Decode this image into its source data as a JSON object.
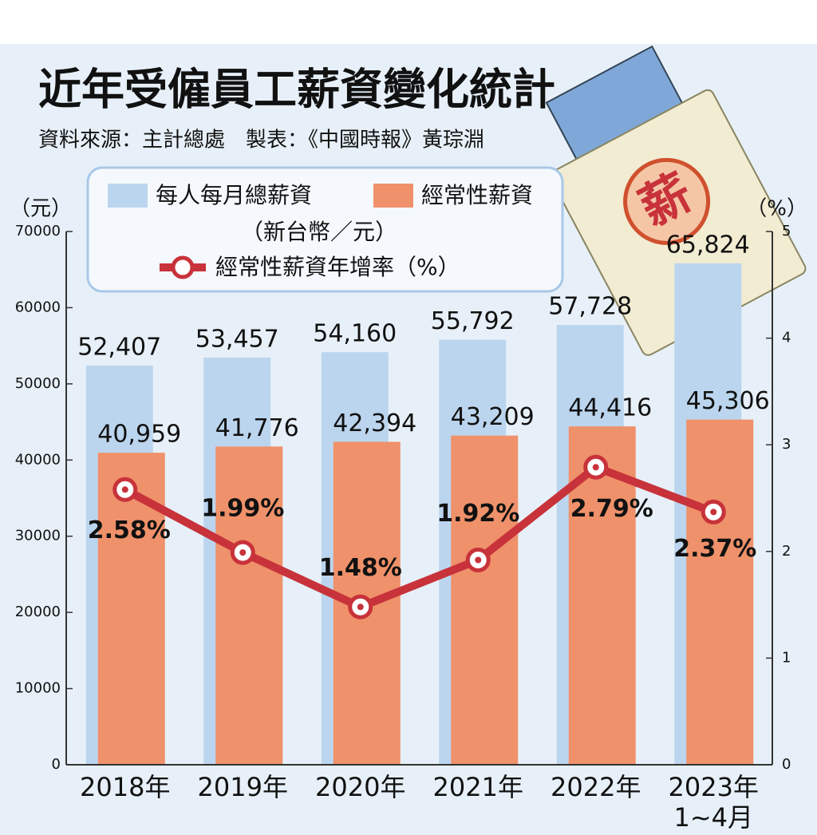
{
  "chart_data": {
    "type": "bar",
    "title": "近年受僱員工薪資變化統計",
    "subtitle": "資料來源：主計總處　製表：《中國時報》黃琮淵",
    "y_axis_label": "（元）",
    "y2_axis_label": "（%）",
    "legend_note": "（新台幣／元）",
    "illustration_text": "薪",
    "categories": [
      "2018年",
      "2019年",
      "2020年",
      "2021年",
      "2022年",
      "2023年\n1~4月"
    ],
    "series": [
      {
        "name": "每人每月總薪資",
        "color": "#bcd5ee",
        "type": "bar",
        "values": [
          52407,
          53457,
          54160,
          55792,
          57728,
          65824
        ],
        "value_labels": [
          "52,407",
          "53,457",
          "54,160",
          "55,792",
          "57,728",
          "65,824"
        ]
      },
      {
        "name": "經常性薪資",
        "color": "#ef916a",
        "type": "bar",
        "values": [
          40959,
          41776,
          42394,
          43209,
          44416,
          45306
        ],
        "value_labels": [
          "40,959",
          "41,776",
          "42,394",
          "43,209",
          "44,416",
          "45,306"
        ]
      },
      {
        "name": "經常性薪資年增率（%）",
        "color": "#c8323a",
        "type": "line",
        "axis": "y2",
        "values": [
          2.58,
          1.99,
          1.48,
          1.92,
          2.79,
          2.37
        ],
        "value_labels": [
          "2.58%",
          "1.99%",
          "1.48%",
          "1.92%",
          "2.79%",
          "2.37%"
        ]
      }
    ],
    "ylim": [
      0,
      70000
    ],
    "yticks": [
      0,
      10000,
      20000,
      30000,
      40000,
      50000,
      60000,
      70000
    ],
    "y2lim": [
      0,
      5
    ],
    "y2ticks": [
      0,
      1,
      2,
      3,
      4,
      5
    ]
  }
}
